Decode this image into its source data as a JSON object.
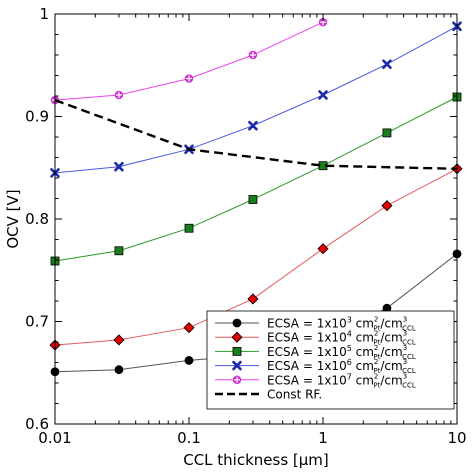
{
  "chart_data": {
    "type": "line",
    "title": "",
    "xlabel": "CCL thickness [μm]",
    "ylabel": "OCV [V]",
    "xscale": "log",
    "xlim": [
      0.01,
      10
    ],
    "ylim": [
      0.6,
      1.0
    ],
    "xticks": [
      {
        "value": 0.01,
        "label": "0.01"
      },
      {
        "value": 0.1,
        "label": "0.1"
      },
      {
        "value": 1,
        "label": "1"
      },
      {
        "value": 10,
        "label": "10"
      }
    ],
    "yticks": [
      {
        "value": 0.6,
        "label": "0.6"
      },
      {
        "value": 0.7,
        "label": "0.7"
      },
      {
        "value": 0.8,
        "label": "0.8"
      },
      {
        "value": 0.9,
        "label": "0.9"
      },
      {
        "value": 1.0,
        "label": "1"
      }
    ],
    "grid": false,
    "legend_position": "bottom-right",
    "series": [
      {
        "legend": {
          "prefix": "ECSA = 1x10",
          "exp": "3",
          "unit": " cm",
          "sub1": "Pt",
          "sep": "/cm",
          "sub2": "CCL"
        },
        "color": "#555555",
        "marker_fill": "#000000",
        "marker": "circle",
        "x": [
          0.01,
          0.03,
          0.1,
          0.3,
          1,
          3,
          10
        ],
        "y": [
          0.651,
          0.653,
          0.662,
          0.667,
          0.683,
          0.713,
          0.766
        ]
      },
      {
        "legend": {
          "prefix": "ECSA = 1x10",
          "exp": "4",
          "unit": " cm",
          "sub1": "Pt",
          "sep": "/cm",
          "sub2": "CCL"
        },
        "color": "#e35b5b",
        "marker_fill": "#e00000",
        "marker": "diamond",
        "x": [
          0.01,
          0.03,
          0.1,
          0.3,
          1,
          3,
          10
        ],
        "y": [
          0.677,
          0.682,
          0.694,
          0.722,
          0.771,
          0.813,
          0.849
        ]
      },
      {
        "legend": {
          "prefix": "ECSA = 1x10",
          "exp": "5",
          "unit": " cm",
          "sub1": "Pt",
          "sep": "/cm",
          "sub2": "CCL"
        },
        "color": "#2a9a2a",
        "marker_fill": "#1b7d1b",
        "marker": "square",
        "x": [
          0.01,
          0.03,
          0.1,
          0.3,
          1,
          3,
          10
        ],
        "y": [
          0.759,
          0.769,
          0.791,
          0.819,
          0.852,
          0.884,
          0.919
        ]
      },
      {
        "legend": {
          "prefix": "ECSA = 1x10",
          "exp": "6",
          "unit": " cm",
          "sub1": "Pt",
          "sep": "/cm",
          "sub2": "CCL"
        },
        "color": "#4a5ae0",
        "marker_fill": "#1a2aa8",
        "marker": "x",
        "x": [
          0.01,
          0.03,
          0.1,
          0.3,
          1,
          3,
          10
        ],
        "y": [
          0.845,
          0.851,
          0.868,
          0.891,
          0.921,
          0.951,
          0.988
        ]
      },
      {
        "legend": {
          "prefix": "ECSA = 1x10",
          "exp": "7",
          "unit": " cm",
          "sub1": "Pt",
          "sep": "/cm",
          "sub2": "CCL"
        },
        "color": "#ee44ee",
        "marker_fill": "#cc33cc",
        "marker": "plus-circle",
        "x": [
          0.01,
          0.03,
          0.1,
          0.3,
          1
        ],
        "y": [
          0.916,
          0.921,
          0.937,
          0.96,
          0.992
        ]
      },
      {
        "legend_text": "Const RF.",
        "color": "#000000",
        "marker": "none",
        "dashed": true,
        "x": [
          0.01,
          0.1,
          1,
          10
        ],
        "y": [
          0.916,
          0.868,
          0.852,
          0.849
        ]
      }
    ]
  }
}
